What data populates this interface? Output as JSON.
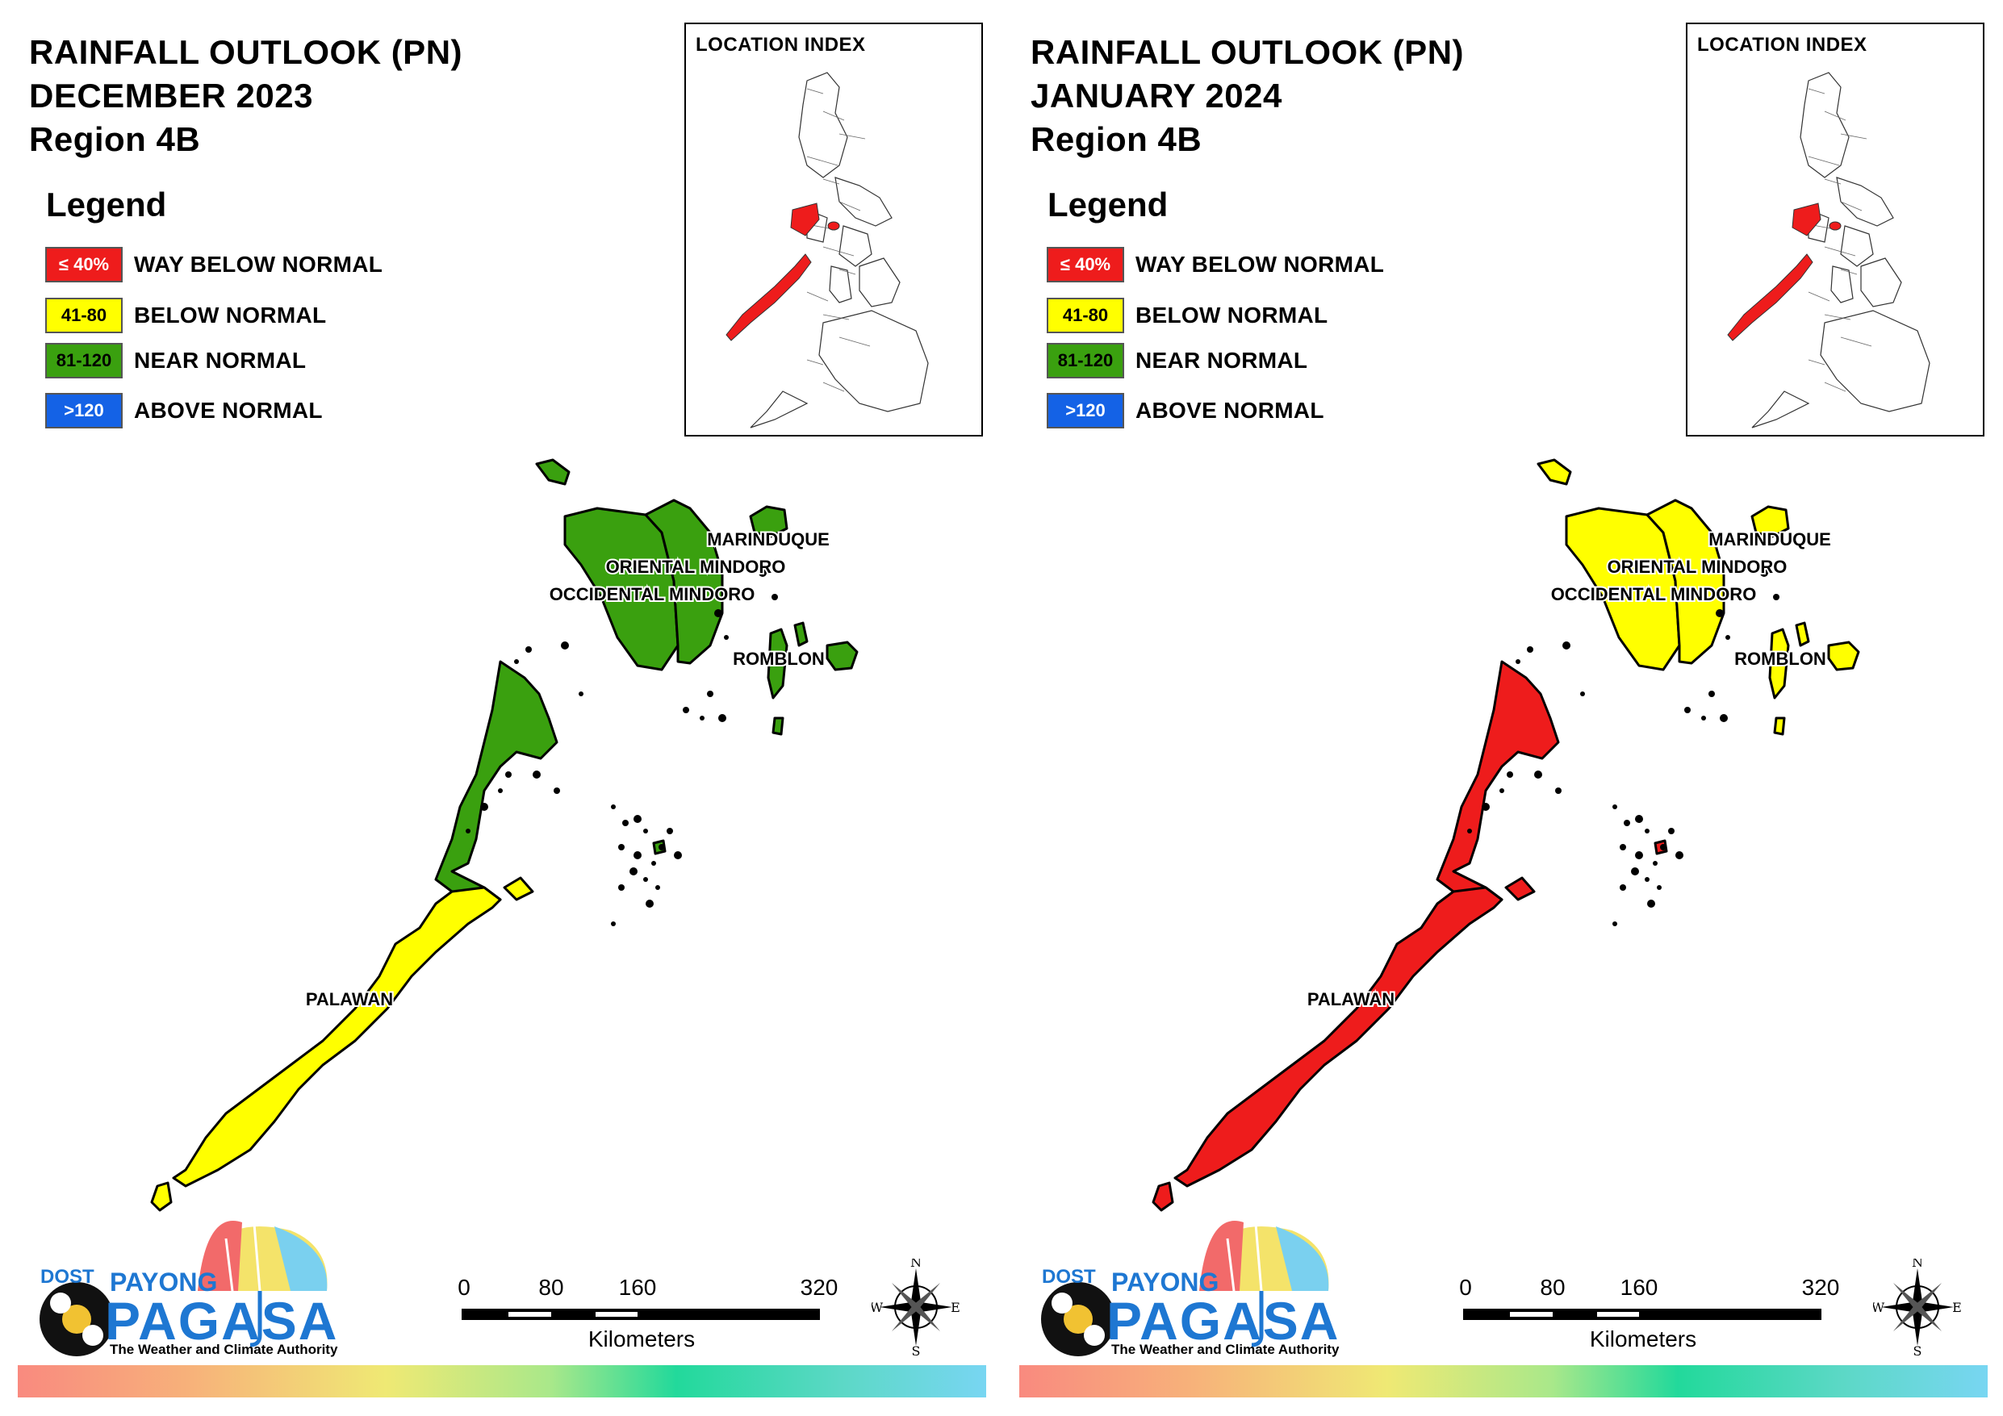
{
  "panels": [
    {
      "title_line1": "RAINFALL OUTLOOK (PN)",
      "title_line2": "DECEMBER 2023",
      "title_line3": "Region 4B",
      "legend_title": "Legend",
      "index_title": "LOCATION INDEX",
      "labels": {
        "marinduque": "MARINDUQUE",
        "oriental_mindoro": "ORIENTAL MINDORO",
        "occidental_mindoro": "OCCIDENTAL MINDORO",
        "romblon": "ROMBLON",
        "palawan": "PALAWAN"
      },
      "province_class": {
        "marinduque": "near_normal",
        "oriental_mindoro": "near_normal",
        "occidental_mindoro": "near_normal",
        "romblon": "near_normal",
        "palawan_north": "near_normal",
        "palawan_south": "below_normal"
      }
    },
    {
      "title_line1": "RAINFALL OUTLOOK (PN)",
      "title_line2": "JANUARY 2024",
      "title_line3": "Region 4B",
      "legend_title": "Legend",
      "index_title": "LOCATION INDEX",
      "labels": {
        "marinduque": "MARINDUQUE",
        "oriental_mindoro": "ORIENTAL MINDORO",
        "occidental_mindoro": "OCCIDENTAL MINDORO",
        "romblon": "ROMBLON",
        "palawan": "PALAWAN"
      },
      "province_class": {
        "marinduque": "below_normal",
        "oriental_mindoro": "below_normal",
        "occidental_mindoro": "below_normal",
        "romblon": "below_normal",
        "palawan_north": "way_below_normal",
        "palawan_south": "way_below_normal"
      }
    }
  ],
  "legend": [
    {
      "key": "way_below_normal",
      "range": "≤ 40%",
      "label": "WAY BELOW NORMAL",
      "color": "#ee1c1c",
      "text_color": "#ffffff"
    },
    {
      "key": "below_normal",
      "range": "41-80",
      "label": "BELOW NORMAL",
      "color": "#ffff00",
      "text_color": "#000000"
    },
    {
      "key": "near_normal",
      "range": "81-120",
      "label": "NEAR NORMAL",
      "color": "#3aa00f",
      "text_color": "#000000"
    },
    {
      "key": "above_normal",
      "range": ">120",
      "label": "ABOVE NORMAL",
      "color": "#1462e6",
      "text_color": "#ffffff"
    }
  ],
  "scale": {
    "ticks": [
      "0",
      "80",
      "160",
      "320"
    ],
    "unit": "Kilometers"
  },
  "compass": {
    "n": "N",
    "s": "S",
    "e": "E",
    "w": "W"
  },
  "logo": {
    "dost": "DOST",
    "payong": "PAYONG",
    "pagasa": "PAGASA",
    "tagline": "The Weather and Climate Authority"
  },
  "index_highlight_color": "#ee1c1c"
}
